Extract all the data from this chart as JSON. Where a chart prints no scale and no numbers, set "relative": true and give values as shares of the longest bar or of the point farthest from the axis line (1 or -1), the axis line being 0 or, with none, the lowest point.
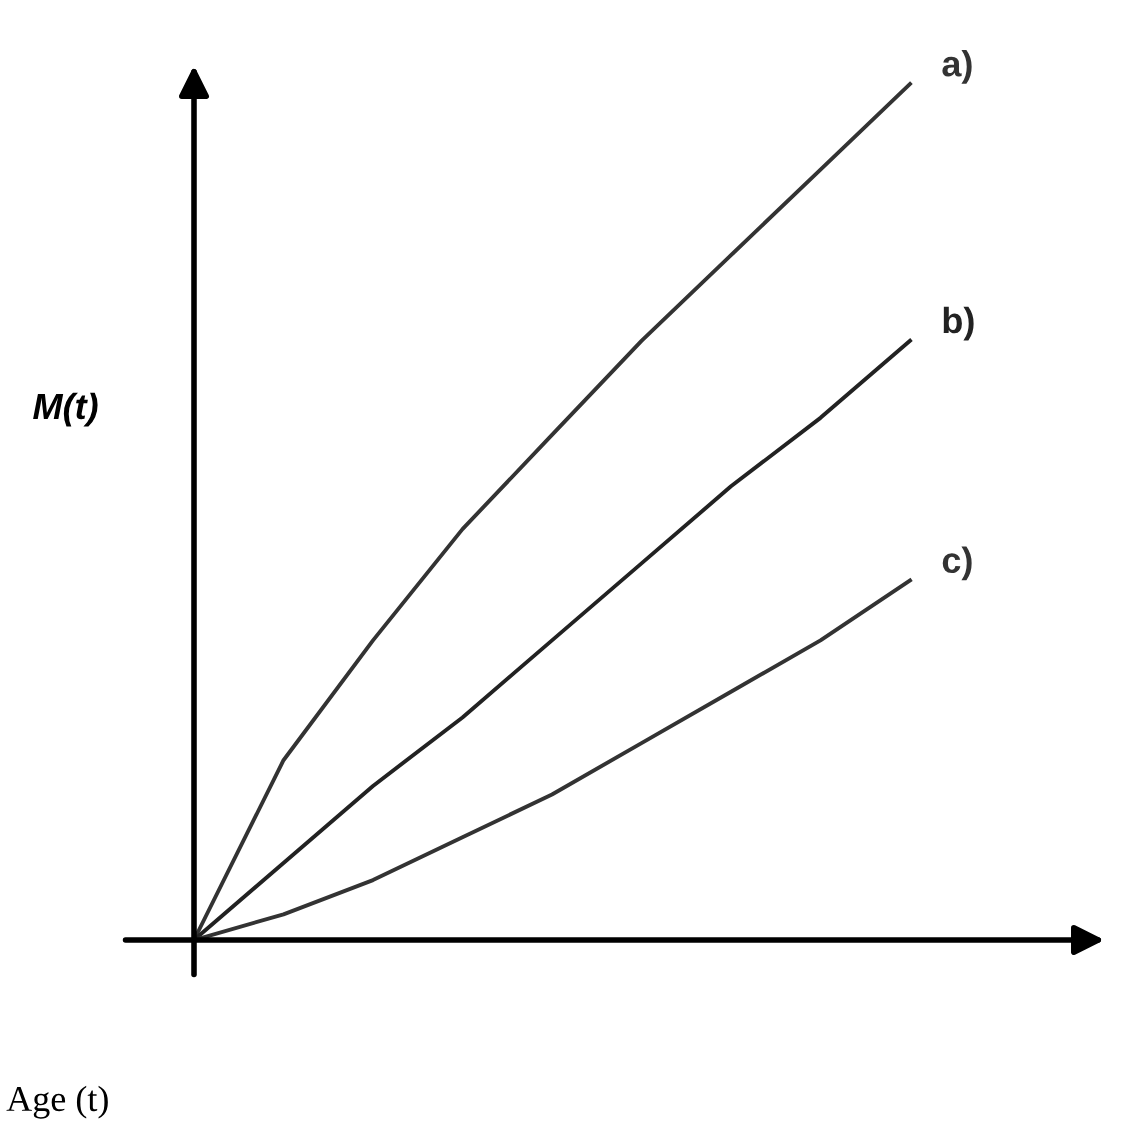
{
  "chart_data": {
    "type": "line",
    "relative": true,
    "xlabel": "Age (t)",
    "ylabel": "M(t)",
    "tick_labels": false,
    "categories": [
      null,
      null,
      null,
      null,
      null,
      null,
      null,
      null,
      null
    ],
    "series": [
      {
        "name": "a)",
        "color": "#333333",
        "values": [
          0,
          0.21,
          0.35,
          0.48,
          0.59,
          0.7,
          0.8,
          0.9,
          1.0
        ]
      },
      {
        "name": "b)",
        "color": "#222222",
        "values": [
          0,
          0.09,
          0.18,
          0.26,
          0.35,
          0.44,
          0.53,
          0.61,
          0.7
        ]
      },
      {
        "name": "c)",
        "color": "#333333",
        "values": [
          0,
          0.03,
          0.07,
          0.12,
          0.17,
          0.23,
          0.29,
          0.35,
          0.42
        ]
      }
    ]
  }
}
